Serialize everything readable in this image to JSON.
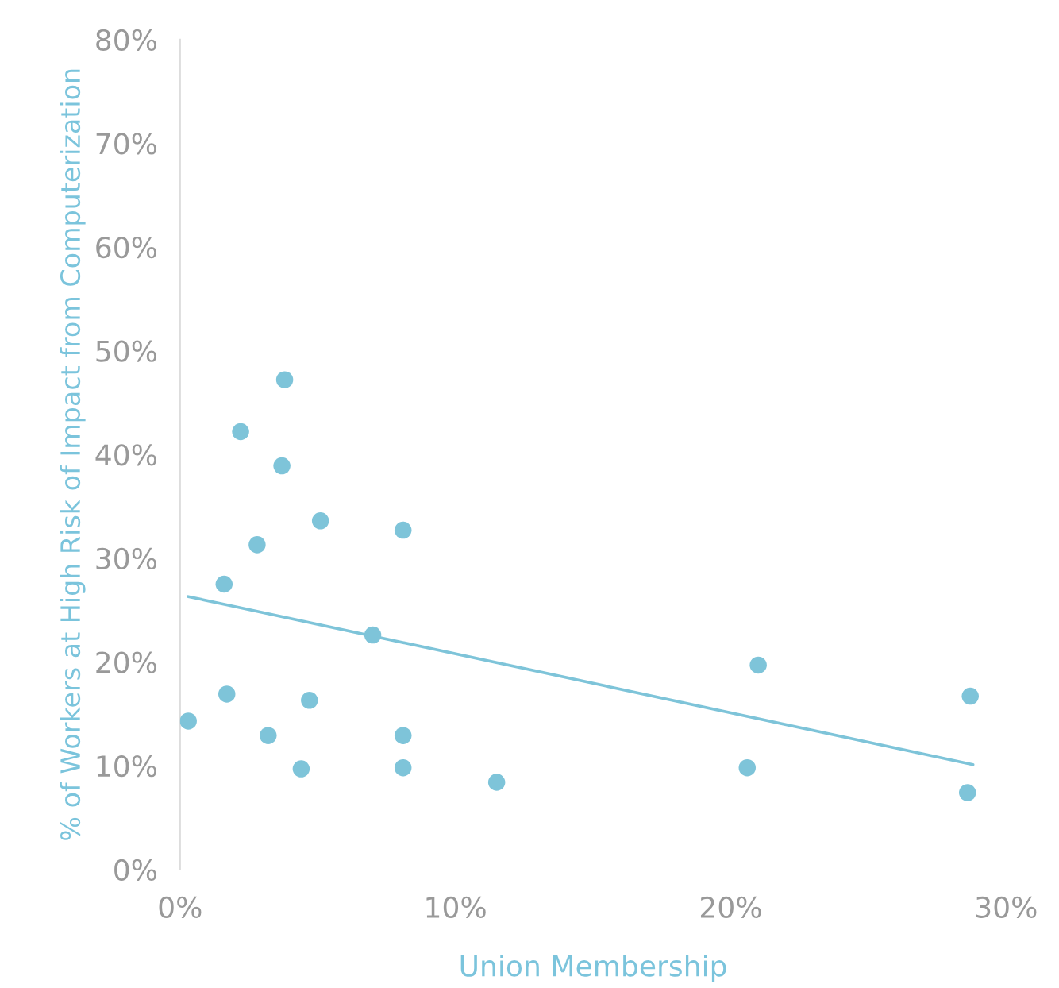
{
  "chart_data": {
    "type": "scatter",
    "xlabel": "Union Membership",
    "ylabel": "% of Workers at High Risk of Impact from Computerization",
    "xlim": [
      0,
      30
    ],
    "xticks": [
      {
        "value": 0,
        "label": "0%"
      },
      {
        "value": 10,
        "label": "10%"
      },
      {
        "value": 20,
        "label": "20%"
      },
      {
        "value": 30,
        "label": "30%"
      }
    ],
    "ylim": [
      0,
      80
    ],
    "yticks": [
      {
        "value": 0,
        "label": "0%"
      },
      {
        "value": 10,
        "label": "10%"
      },
      {
        "value": 20,
        "label": "20%"
      },
      {
        "value": 30,
        "label": "30%"
      },
      {
        "value": 40,
        "label": "40%"
      },
      {
        "value": 50,
        "label": "50%"
      },
      {
        "value": 60,
        "label": "60%"
      },
      {
        "value": 70,
        "label": "70%"
      },
      {
        "value": 80,
        "label": "80%"
      }
    ],
    "grid": false,
    "series": [
      {
        "marker": "circle",
        "color": "#7ec4d9",
        "x": [
          0.3,
          1.6,
          1.7,
          2.2,
          2.8,
          3.2,
          3.7,
          3.8,
          4.4,
          4.7,
          5.1,
          7.0,
          8.1,
          8.1,
          8.1,
          11.5,
          20.6,
          21.0,
          28.6,
          28.7
        ],
        "values": [
          14.3,
          27.5,
          16.9,
          42.2,
          31.3,
          12.9,
          38.9,
          47.2,
          9.7,
          16.3,
          33.6,
          22.6,
          32.7,
          12.9,
          9.8,
          8.4,
          9.8,
          19.7,
          7.4,
          16.7
        ]
      },
      {
        "type": "line",
        "color": "#7ec4d9",
        "x": [
          0.3,
          28.8
        ],
        "values": [
          26.3,
          10.1
        ]
      }
    ]
  }
}
